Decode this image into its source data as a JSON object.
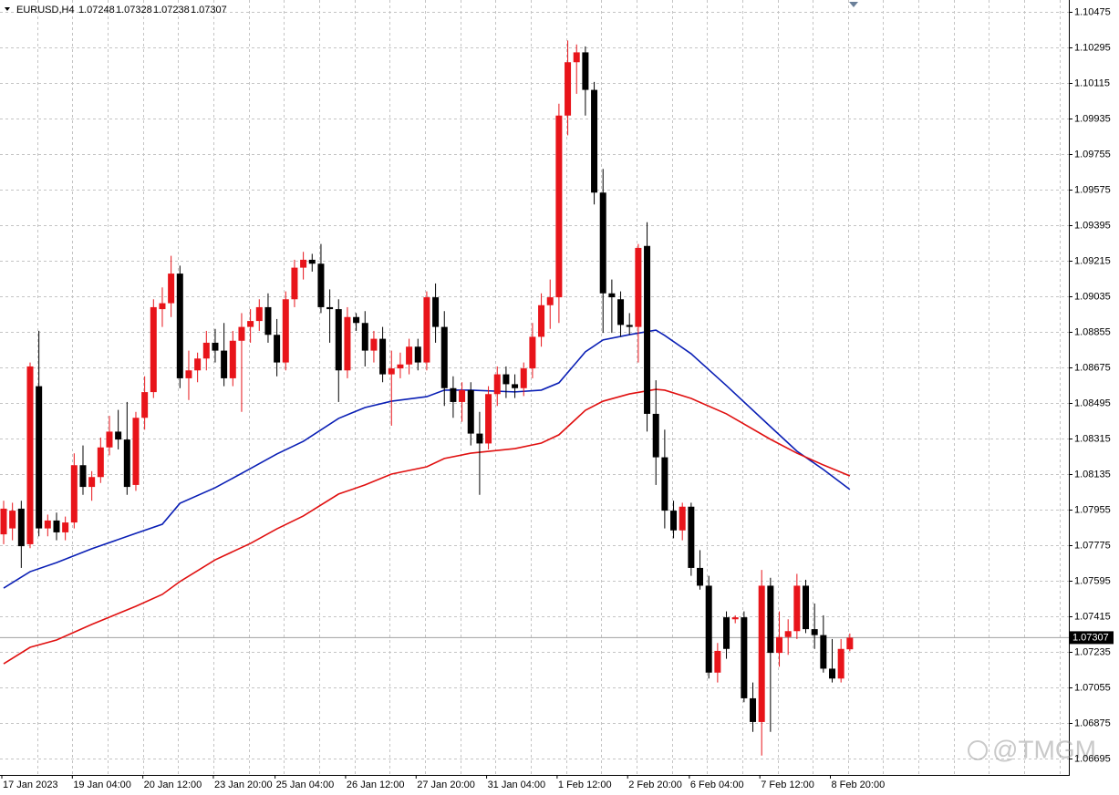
{
  "chart_data": {
    "type": "candlestick",
    "symbol": "EURUSD,H4",
    "watermark": "@TMGM",
    "bull_color": "#e8141a",
    "bear_color": "#000000",
    "grid": true,
    "ylim": [
      1.10535,
      1.06612
    ],
    "yticks": [
      1.10475,
      1.10295,
      1.10115,
      1.09935,
      1.09755,
      1.09575,
      1.09395,
      1.09215,
      1.09035,
      1.08855,
      1.08675,
      1.08495,
      1.08315,
      1.08135,
      1.07955,
      1.07775,
      1.07595,
      1.07415,
      1.07235,
      1.07055,
      1.06875,
      1.06695
    ],
    "categories": [
      "17 Jan 2023",
      null,
      null,
      null,
      null,
      null,
      null,
      null,
      "19 Jan 04:00",
      null,
      null,
      null,
      null,
      null,
      null,
      null,
      "20 Jan 12:00",
      null,
      null,
      null,
      null,
      null,
      null,
      null,
      "23 Jan 20:00",
      null,
      null,
      null,
      null,
      null,
      null,
      "25 Jan 04:00",
      null,
      null,
      null,
      null,
      null,
      null,
      null,
      "26 Jan 12:00",
      null,
      null,
      null,
      null,
      null,
      null,
      null,
      "27 Jan 20:00",
      null,
      null,
      null,
      null,
      null,
      null,
      null,
      "31 Jan 04:00",
      null,
      null,
      null,
      null,
      null,
      null,
      null,
      "1 Feb 12:00",
      null,
      null,
      null,
      null,
      null,
      null,
      null,
      "2 Feb 20:00",
      null,
      null,
      null,
      null,
      null,
      null,
      "6 Feb 04:00",
      null,
      null,
      null,
      null,
      null,
      null,
      null,
      "7 Feb 12:00",
      null,
      null,
      null,
      null,
      null,
      null,
      null,
      "8 Feb 20:00",
      null,
      null
    ],
    "ohlc": [
      [
        1.0783,
        1.08,
        1.0778,
        1.0796
      ],
      [
        1.0786,
        1.0799,
        1.078,
        1.0795
      ],
      [
        1.0796,
        1.08,
        1.0766,
        1.0777
      ],
      [
        1.0778,
        1.087,
        1.0776,
        1.0868
      ],
      [
        1.0858,
        1.0886,
        1.0782,
        1.0786
      ],
      [
        1.0786,
        1.0793,
        1.0782,
        1.079
      ],
      [
        1.079,
        1.0794,
        1.078,
        1.0784
      ],
      [
        1.0784,
        1.0792,
        1.078,
        1.0789
      ],
      [
        1.0789,
        1.0824,
        1.0786,
        1.0818
      ],
      [
        1.0818,
        1.0828,
        1.0803,
        1.0807
      ],
      [
        1.0807,
        1.0815,
        1.08,
        1.0812
      ],
      [
        1.0812,
        1.0832,
        1.0809,
        1.0827
      ],
      [
        1.0827,
        1.0843,
        1.0823,
        1.0835
      ],
      [
        1.0835,
        1.0846,
        1.0826,
        1.0831
      ],
      [
        1.0831,
        1.085,
        1.0803,
        1.0807
      ],
      [
        1.0808,
        1.0845,
        1.0805,
        1.0842
      ],
      [
        1.0842,
        1.0863,
        1.0836,
        1.0855
      ],
      [
        1.0855,
        1.0902,
        1.0852,
        1.0898
      ],
      [
        1.0897,
        1.0908,
        1.0888,
        1.09
      ],
      [
        1.09,
        1.0924,
        1.0893,
        1.0915
      ],
      [
        1.0915,
        1.0919,
        1.0857,
        1.0862
      ],
      [
        1.0862,
        1.0876,
        1.0851,
        1.0866
      ],
      [
        1.0866,
        1.0875,
        1.086,
        1.0872
      ],
      [
        1.0872,
        1.0886,
        1.0866,
        1.088
      ],
      [
        1.088,
        1.0887,
        1.087,
        1.0876
      ],
      [
        1.0876,
        1.089,
        1.0858,
        1.0862
      ],
      [
        1.0862,
        1.0886,
        1.0858,
        1.0881
      ],
      [
        1.0881,
        1.0895,
        1.0845,
        1.0888
      ],
      [
        1.0888,
        1.0897,
        1.088,
        1.0891
      ],
      [
        1.0891,
        1.0902,
        1.0886,
        1.0898
      ],
      [
        1.0898,
        1.0905,
        1.088,
        1.0884
      ],
      [
        1.0884,
        1.0892,
        1.0863,
        1.087
      ],
      [
        1.087,
        1.0906,
        1.0866,
        1.0902
      ],
      [
        1.0902,
        1.0922,
        1.0898,
        1.0918
      ],
      [
        1.0918,
        1.0926,
        1.0912,
        1.0922
      ],
      [
        1.0922,
        1.0925,
        1.0916,
        1.092
      ],
      [
        1.092,
        1.093,
        1.0895,
        1.0898
      ],
      [
        1.0898,
        1.0907,
        1.088,
        1.0897
      ],
      [
        1.0897,
        1.0902,
        1.085,
        1.0866
      ],
      [
        1.0866,
        1.0898,
        1.0862,
        1.0893
      ],
      [
        1.0893,
        1.0895,
        1.0886,
        1.089
      ],
      [
        1.089,
        1.0896,
        1.0868,
        1.0876
      ],
      [
        1.0876,
        1.0886,
        1.087,
        1.0882
      ],
      [
        1.0882,
        1.0888,
        1.086,
        1.0864
      ],
      [
        1.0864,
        1.0876,
        1.0838,
        1.0867
      ],
      [
        1.0867,
        1.0875,
        1.0862,
        1.0869
      ],
      [
        1.0869,
        1.0882,
        1.0864,
        1.0878
      ],
      [
        1.0878,
        1.0882,
        1.0866,
        1.087
      ],
      [
        1.087,
        1.0906,
        1.0866,
        1.0903
      ],
      [
        1.0903,
        1.091,
        1.088,
        1.0888
      ],
      [
        1.0888,
        1.0896,
        1.0848,
        1.0857
      ],
      [
        1.0857,
        1.0863,
        1.0842,
        1.085
      ],
      [
        1.085,
        1.086,
        1.084,
        1.0856
      ],
      [
        1.0856,
        1.086,
        1.0828,
        1.0834
      ],
      [
        1.0834,
        1.0845,
        1.0803,
        1.0829
      ],
      [
        1.0829,
        1.0858,
        1.0826,
        1.0854
      ],
      [
        1.0854,
        1.0868,
        1.0848,
        1.0864
      ],
      [
        1.0864,
        1.0868,
        1.0852,
        1.0859
      ],
      [
        1.0859,
        1.0864,
        1.0852,
        1.0857
      ],
      [
        1.0857,
        1.087,
        1.0853,
        1.0867
      ],
      [
        1.0867,
        1.089,
        1.0862,
        1.0883
      ],
      [
        1.0883,
        1.0905,
        1.0878,
        1.0899
      ],
      [
        1.0899,
        1.0912,
        1.0887,
        1.0903
      ],
      [
        1.0903,
        1.1001,
        1.089,
        1.0995
      ],
      [
        1.0995,
        1.1033,
        1.0985,
        1.1022
      ],
      [
        1.1022,
        1.1031,
        1.1006,
        1.1027
      ],
      [
        1.1027,
        1.103,
        1.0995,
        1.1008
      ],
      [
        1.1008,
        1.1012,
        1.095,
        1.0956
      ],
      [
        1.0956,
        1.0968,
        1.0885,
        1.0905
      ],
      [
        1.0905,
        1.0912,
        1.0885,
        1.0903
      ],
      [
        1.0902,
        1.0906,
        1.0883,
        1.0889
      ],
      [
        1.0889,
        1.0895,
        1.0884,
        1.0888
      ],
      [
        1.0888,
        1.093,
        1.087,
        1.0928
      ],
      [
        1.0929,
        1.0941,
        1.0835,
        1.0844
      ],
      [
        1.0844,
        1.0861,
        1.0808,
        1.0822
      ],
      [
        1.0822,
        1.0836,
        1.0786,
        1.0795
      ],
      [
        1.0795,
        1.08,
        1.0781,
        1.0785
      ],
      [
        1.0785,
        1.0799,
        1.078,
        1.0797
      ],
      [
        1.0797,
        1.0799,
        1.0762,
        1.0766
      ],
      [
        1.0766,
        1.0775,
        1.0755,
        1.0757
      ],
      [
        1.0757,
        1.0762,
        1.071,
        1.0713
      ],
      [
        1.0713,
        1.0728,
        1.0708,
        1.0724
      ],
      [
        1.0741,
        1.0744,
        1.072,
        1.0725
      ],
      [
        1.074,
        1.0742,
        1.0738,
        1.0741
      ],
      [
        1.0741,
        1.0744,
        1.0698,
        1.07
      ],
      [
        1.07,
        1.0708,
        1.0683,
        1.0688
      ],
      [
        1.0688,
        1.0765,
        1.0671,
        1.0757
      ],
      [
        1.0757,
        1.0761,
        1.0683,
        1.0723
      ],
      [
        1.0723,
        1.0744,
        1.0716,
        1.0731
      ],
      [
        1.0731,
        1.074,
        1.0722,
        1.0734
      ],
      [
        1.0734,
        1.0763,
        1.073,
        1.0757
      ],
      [
        1.0757,
        1.076,
        1.0733,
        1.0735
      ],
      [
        1.0735,
        1.0748,
        1.0725,
        1.0732
      ],
      [
        1.0732,
        1.0742,
        1.0713,
        1.0715
      ],
      [
        1.0715,
        1.073,
        1.0708,
        1.071
      ],
      [
        1.071,
        1.073,
        1.0708,
        1.0725
      ],
      [
        1.07248,
        1.07328,
        1.07238,
        1.07307
      ]
    ],
    "moving_averages": [
      {
        "color": "#0a1fb5",
        "x": [
          0,
          3,
          6,
          10,
          15,
          18,
          20,
          24,
          28,
          31,
          34,
          38,
          41,
          44,
          48,
          50,
          53,
          58,
          61,
          63,
          66,
          68,
          71,
          74,
          75,
          78,
          82,
          87,
          90,
          93,
          96
        ],
        "values": [
          1.07558,
          1.07641,
          1.07687,
          1.07757,
          1.07835,
          1.07881,
          1.07987,
          1.08066,
          1.08163,
          1.08237,
          1.08301,
          1.08417,
          1.08472,
          1.08504,
          1.08527,
          1.0856,
          1.0856,
          1.08551,
          1.0856,
          1.08597,
          1.08754,
          1.08814,
          1.08841,
          1.08864,
          1.08837,
          1.08744,
          1.08583,
          1.08375,
          1.08251,
          1.08158,
          1.08057
        ]
      },
      {
        "color": "#e01010",
        "x": [
          0,
          3,
          6,
          10,
          15,
          18,
          20,
          24,
          28,
          31,
          34,
          38,
          41,
          44,
          48,
          50,
          53,
          58,
          61,
          63,
          66,
          68,
          71,
          74,
          75,
          78,
          82,
          87,
          90,
          93,
          96
        ],
        "values": [
          1.07175,
          1.07258,
          1.07295,
          1.07374,
          1.07466,
          1.07526,
          1.07591,
          1.07701,
          1.07784,
          1.07858,
          1.07923,
          1.08034,
          1.0808,
          1.08135,
          1.08172,
          1.08214,
          1.08241,
          1.08264,
          1.08292,
          1.08334,
          1.08458,
          1.08504,
          1.08541,
          1.08564,
          1.0856,
          1.08518,
          1.0844,
          1.08311,
          1.08241,
          1.08181,
          1.08126
        ]
      }
    ]
  }
}
